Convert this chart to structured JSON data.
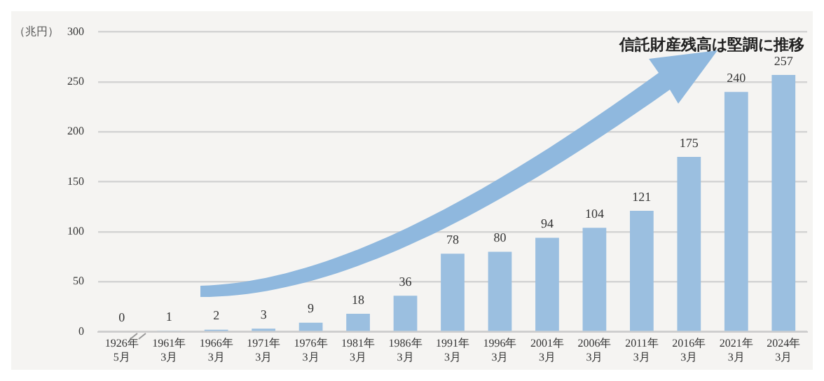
{
  "chart_data": {
    "type": "bar",
    "ylabel": "（兆円）",
    "annotations": [
      "信託財産残高は堅調に推移"
    ],
    "categories": [
      "1926年5月",
      "1961年3月",
      "1966年3月",
      "1971年3月",
      "1976年3月",
      "1981年3月",
      "1986年3月",
      "1991年3月",
      "1996年3月",
      "2001年3月",
      "2006年3月",
      "2011年3月",
      "2016年3月",
      "2021年3月",
      "2024年3月"
    ],
    "values": [
      0,
      1,
      2,
      3,
      9,
      18,
      36,
      78,
      80,
      94,
      104,
      121,
      175,
      240,
      257
    ],
    "color": "#9bbfe0",
    "ylim": [
      0,
      300
    ],
    "yticks": [
      0,
      50,
      100,
      150,
      200,
      250,
      300
    ],
    "grid": "y",
    "data_labels": true
  }
}
